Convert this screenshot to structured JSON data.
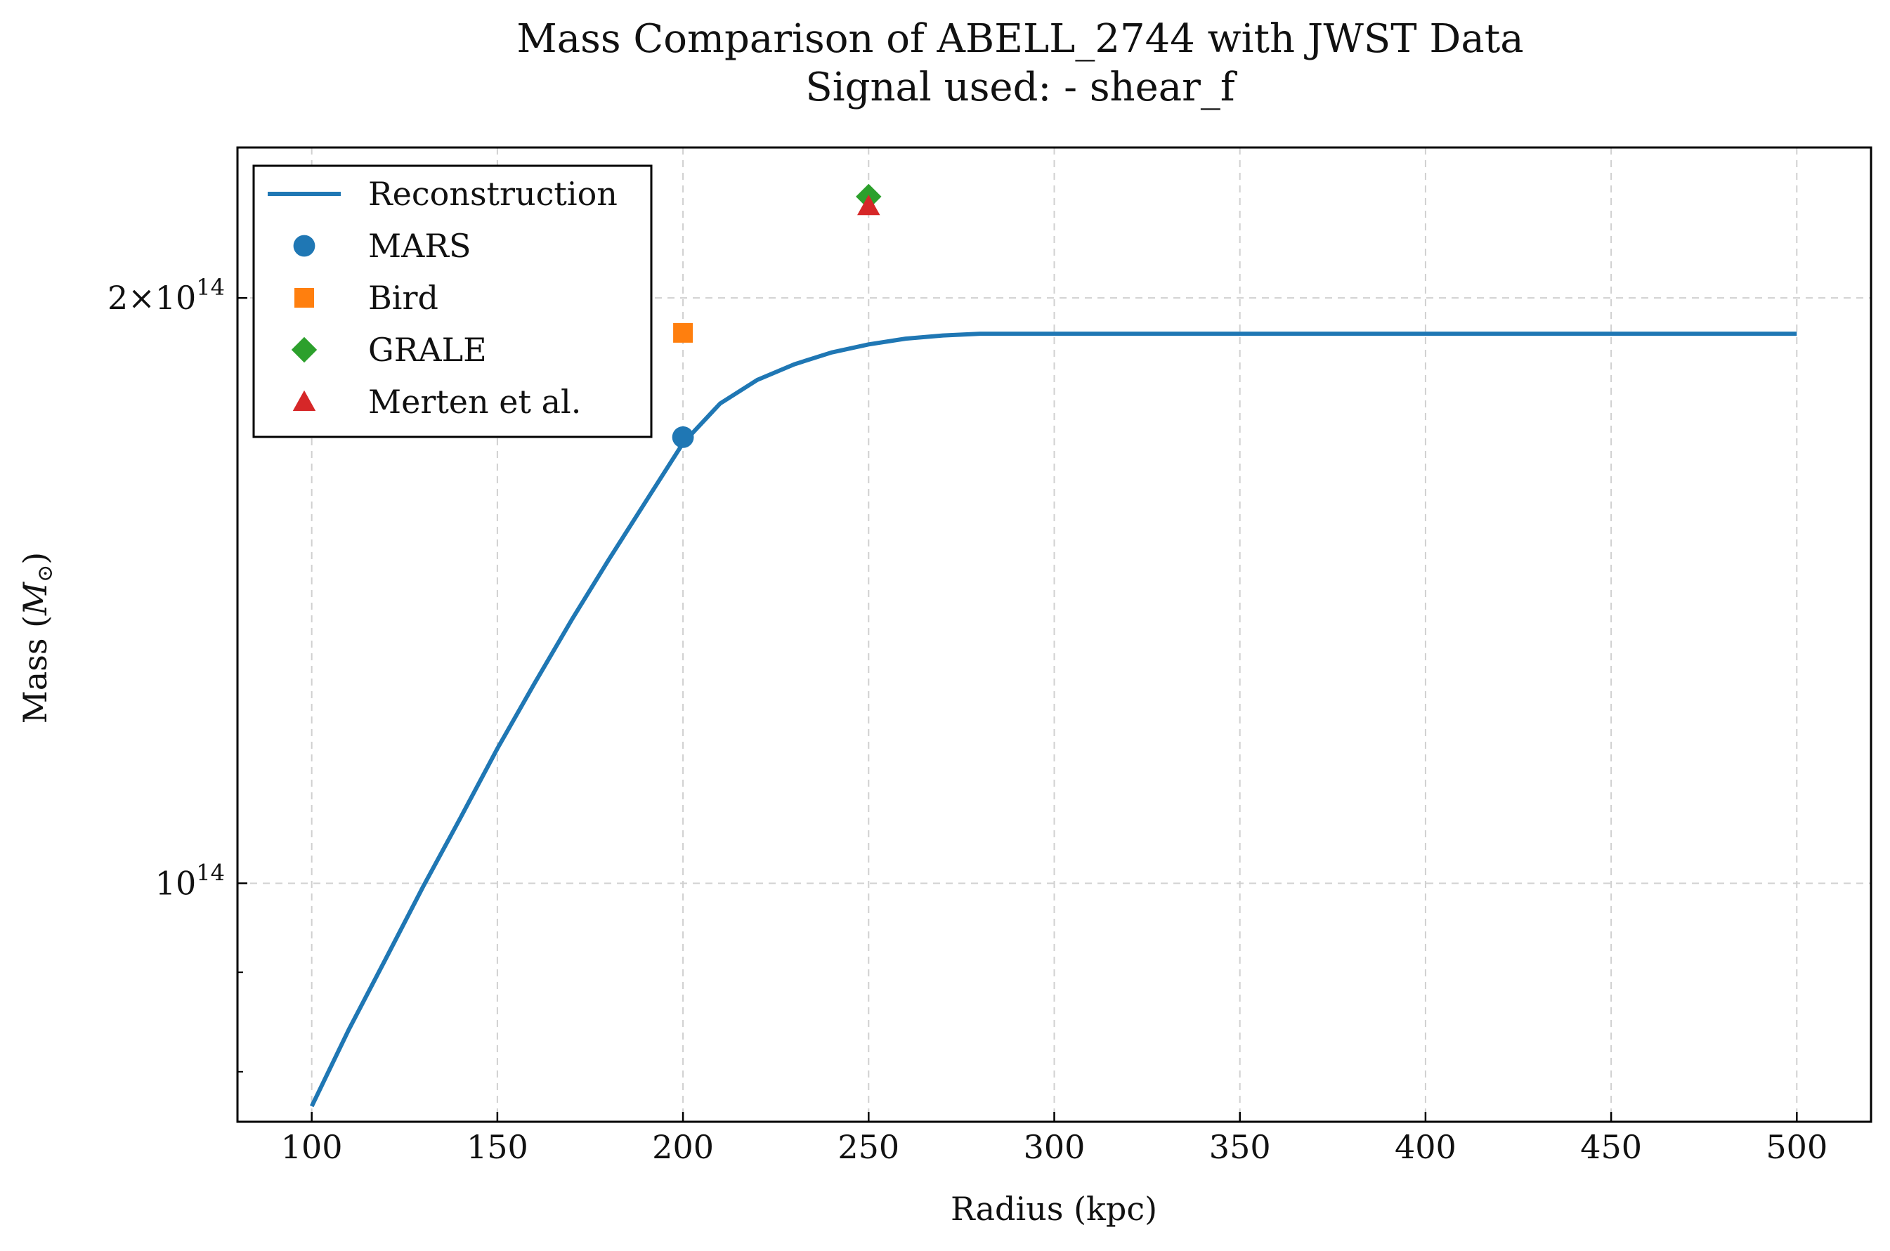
{
  "chart_data": {
    "type": "line",
    "title": "Mass Comparison of ABELL_2744 with JWST Data",
    "subtitle": "Signal used: - shear_f",
    "xlabel": "Radius (kpc)",
    "ylabel": "Mass (",
    "ylabel_symbol": "M",
    "ylabel_sub": "⊙",
    "ylabel_close": ")",
    "xlim": [
      80,
      520
    ],
    "ylim": [
      75400000000000,
      239000000000000
    ],
    "yscale": "log",
    "grid": true,
    "legend_position": "top-left",
    "x_ticks": [
      {
        "value": 100,
        "label": "100"
      },
      {
        "value": 150,
        "label": "150"
      },
      {
        "value": 200,
        "label": "200"
      },
      {
        "value": 250,
        "label": "250"
      },
      {
        "value": 300,
        "label": "300"
      },
      {
        "value": 350,
        "label": "350"
      },
      {
        "value": 400,
        "label": "400"
      },
      {
        "value": 450,
        "label": "450"
      },
      {
        "value": 500,
        "label": "500"
      }
    ],
    "y_major_ticks": [
      {
        "value": 100000000000000,
        "mantissa": "",
        "base": "10",
        "exp": "14"
      },
      {
        "value": 200000000000000,
        "mantissa": "2×",
        "base": "10",
        "exp": "14"
      }
    ],
    "y_minor_ticks": [
      60000000000000,
      70000000000000,
      80000000000000,
      90000000000000
    ],
    "series": [
      {
        "name": "Reconstruction",
        "kind": "line",
        "color": "#1f77b4",
        "points": [
          [
            100,
            76800000000000
          ],
          [
            110,
            84100000000000
          ],
          [
            120,
            91500000000000
          ],
          [
            130,
            99600000000000
          ],
          [
            140,
            108000000000000
          ],
          [
            150,
            117300000000000
          ],
          [
            160,
            126700000000000
          ],
          [
            170,
            136600000000000
          ],
          [
            180,
            146700000000000
          ],
          [
            190,
            157200000000000
          ],
          [
            200,
            168400000000000
          ],
          [
            210,
            176500000000000
          ],
          [
            220,
            181500000000000
          ],
          [
            230,
            184900000000000
          ],
          [
            240,
            187500000000000
          ],
          [
            250,
            189300000000000
          ],
          [
            260,
            190600000000000
          ],
          [
            270,
            191300000000000
          ],
          [
            280,
            191700000000000
          ],
          [
            300,
            191700000000000
          ],
          [
            350,
            191700000000000
          ],
          [
            400,
            191700000000000
          ],
          [
            450,
            191700000000000
          ],
          [
            500,
            191700000000000
          ]
        ]
      },
      {
        "name": "MARS",
        "kind": "marker",
        "marker": "circle",
        "color": "#1f77b4",
        "points": [
          [
            200,
            169600000000000
          ]
        ]
      },
      {
        "name": "Bird",
        "kind": "marker",
        "marker": "square",
        "color": "#ff7f0e",
        "points": [
          [
            200,
            191900000000000
          ]
        ]
      },
      {
        "name": "GRALE",
        "kind": "marker",
        "marker": "diamond",
        "color": "#2ca02c",
        "points": [
          [
            250,
            225500000000000
          ]
        ]
      },
      {
        "name": "Merten et al.",
        "kind": "marker",
        "marker": "triangle",
        "color": "#d62728",
        "points": [
          [
            250,
            223000000000000
          ]
        ]
      }
    ]
  }
}
